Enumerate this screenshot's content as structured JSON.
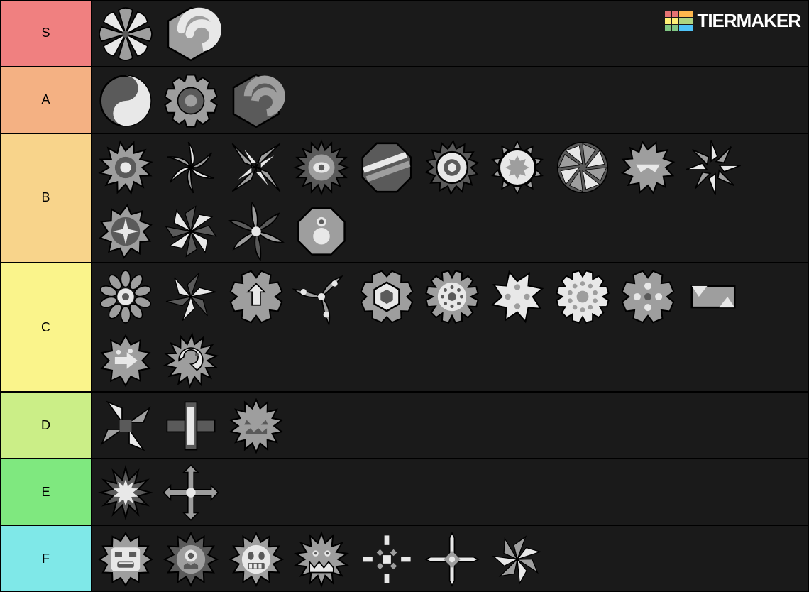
{
  "watermark": {
    "text": "TIERMAKER",
    "grid_colors": [
      "#e57373",
      "#e57373",
      "#ffb74d",
      "#ffb74d",
      "#fff176",
      "#fff176",
      "#aed581",
      "#aed581",
      "#81c784",
      "#81c784",
      "#4fc3f7",
      "#4fc3f7"
    ]
  },
  "background_color": "#1a1a1a",
  "item_palette": {
    "light": "#e8e8e8",
    "mid": "#9e9e9e",
    "dark": "#5a5a5a",
    "outline": "#000000"
  },
  "tiers": [
    {
      "label": "S",
      "color": "#f08080",
      "items": [
        {
          "name": "pinwheel-8-flower",
          "shape": "flower8"
        },
        {
          "name": "hex-spiral",
          "shape": "hex_spiral"
        }
      ]
    },
    {
      "label": "A",
      "color": "#f4b183",
      "items": [
        {
          "name": "yinyang-gear",
          "shape": "yinyang"
        },
        {
          "name": "gear-donut",
          "shape": "gear_donut"
        },
        {
          "name": "dark-spiral",
          "shape": "hex_spiral_dark"
        }
      ]
    },
    {
      "label": "B",
      "color": "#f8d48b",
      "items": [
        {
          "name": "saw-pointed",
          "shape": "saw12"
        },
        {
          "name": "pinwheel-curved",
          "shape": "pinwheel6"
        },
        {
          "name": "shuriken-4",
          "shape": "shuriken4"
        },
        {
          "name": "eye-spiky",
          "shape": "eye_spiky"
        },
        {
          "name": "stripe-oct",
          "shape": "stripe_oct"
        },
        {
          "name": "ring-hex-saw",
          "shape": "ring_saw"
        },
        {
          "name": "sun-gear",
          "shape": "sun_gear"
        },
        {
          "name": "aperture-8",
          "shape": "aperture"
        },
        {
          "name": "chomp-gear",
          "shape": "chomp_gear"
        },
        {
          "name": "pinwheel-open",
          "shape": "pinwheel_open"
        },
        {
          "name": "compass-saw",
          "shape": "compass_saw"
        },
        {
          "name": "pinwheel-sharp",
          "shape": "pinwheel_sharp"
        },
        {
          "name": "rose-swirl",
          "shape": "rose_swirl"
        },
        {
          "name": "drop-8",
          "shape": "drop8"
        }
      ]
    },
    {
      "label": "C",
      "color": "#faf48b",
      "items": [
        {
          "name": "multi-flower",
          "shape": "multiflower"
        },
        {
          "name": "throwing-star",
          "shape": "throwstar"
        },
        {
          "name": "shield-arrow",
          "shape": "shield_arrow"
        },
        {
          "name": "tri-blade",
          "shape": "triblade"
        },
        {
          "name": "hex-ring",
          "shape": "hex_ring"
        },
        {
          "name": "gear-12dot",
          "shape": "gear_dots"
        },
        {
          "name": "saw-4dot",
          "shape": "saw_4dot"
        },
        {
          "name": "dot-ring-gear",
          "shape": "dotring"
        },
        {
          "name": "quad-dot-gear",
          "shape": "quaddot"
        },
        {
          "name": "block-arrows",
          "shape": "block_arrows"
        },
        {
          "name": "monster-arrow",
          "shape": "monster_arrow"
        },
        {
          "name": "dragon-saw",
          "shape": "dragon_saw"
        }
      ]
    },
    {
      "label": "D",
      "color": "#cbee87",
      "items": [
        {
          "name": "quad-triangles",
          "shape": "quad_tri"
        },
        {
          "name": "cross-bars",
          "shape": "cross_bars"
        },
        {
          "name": "pumpkin-spiky",
          "shape": "pumpkin"
        }
      ]
    },
    {
      "label": "E",
      "color": "#7fe87f",
      "items": [
        {
          "name": "burst-star",
          "shape": "burst"
        },
        {
          "name": "cross-arrows",
          "shape": "cross_arrow"
        }
      ]
    },
    {
      "label": "F",
      "color": "#7fe8e8",
      "items": [
        {
          "name": "face-angry-square",
          "shape": "face1"
        },
        {
          "name": "face-cyclops",
          "shape": "face2"
        },
        {
          "name": "face-grin",
          "shape": "face3"
        },
        {
          "name": "face-monster-teeth",
          "shape": "face4"
        },
        {
          "name": "dot-plus",
          "shape": "dot_plus"
        },
        {
          "name": "sword-cross",
          "shape": "sword_cross"
        },
        {
          "name": "shatter-star",
          "shape": "shatter"
        }
      ]
    }
  ]
}
